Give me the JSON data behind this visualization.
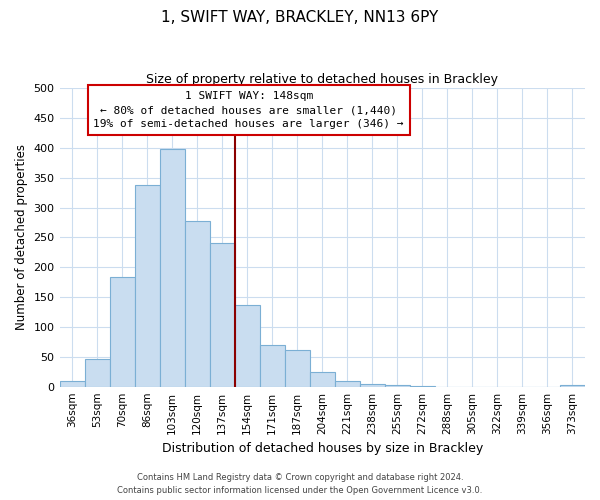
{
  "title": "1, SWIFT WAY, BRACKLEY, NN13 6PY",
  "subtitle": "Size of property relative to detached houses in Brackley",
  "xlabel": "Distribution of detached houses by size in Brackley",
  "ylabel": "Number of detached properties",
  "bar_labels": [
    "36sqm",
    "53sqm",
    "70sqm",
    "86sqm",
    "103sqm",
    "120sqm",
    "137sqm",
    "154sqm",
    "171sqm",
    "187sqm",
    "204sqm",
    "221sqm",
    "238sqm",
    "255sqm",
    "272sqm",
    "288sqm",
    "305sqm",
    "322sqm",
    "339sqm",
    "356sqm",
    "373sqm"
  ],
  "bar_values": [
    10,
    47,
    184,
    338,
    398,
    277,
    241,
    136,
    70,
    62,
    25,
    10,
    5,
    2,
    1,
    0,
    0,
    0,
    0,
    0,
    2
  ],
  "bar_color": "#c9ddf0",
  "bar_edge_color": "#7bafd4",
  "marker_index": 7,
  "marker_label": "1 SWIFT WAY: 148sqm",
  "marker_line_color": "#8b0000",
  "annotation_line1": "← 80% of detached houses are smaller (1,440)",
  "annotation_line2": "19% of semi-detached houses are larger (346) →",
  "annotation_box_edge": "#cc0000",
  "ylim": [
    0,
    500
  ],
  "yticks": [
    0,
    50,
    100,
    150,
    200,
    250,
    300,
    350,
    400,
    450,
    500
  ],
  "footer_line1": "Contains HM Land Registry data © Crown copyright and database right 2024.",
  "footer_line2": "Contains public sector information licensed under the Open Government Licence v3.0.",
  "background_color": "#ffffff",
  "grid_color": "#ccddef"
}
